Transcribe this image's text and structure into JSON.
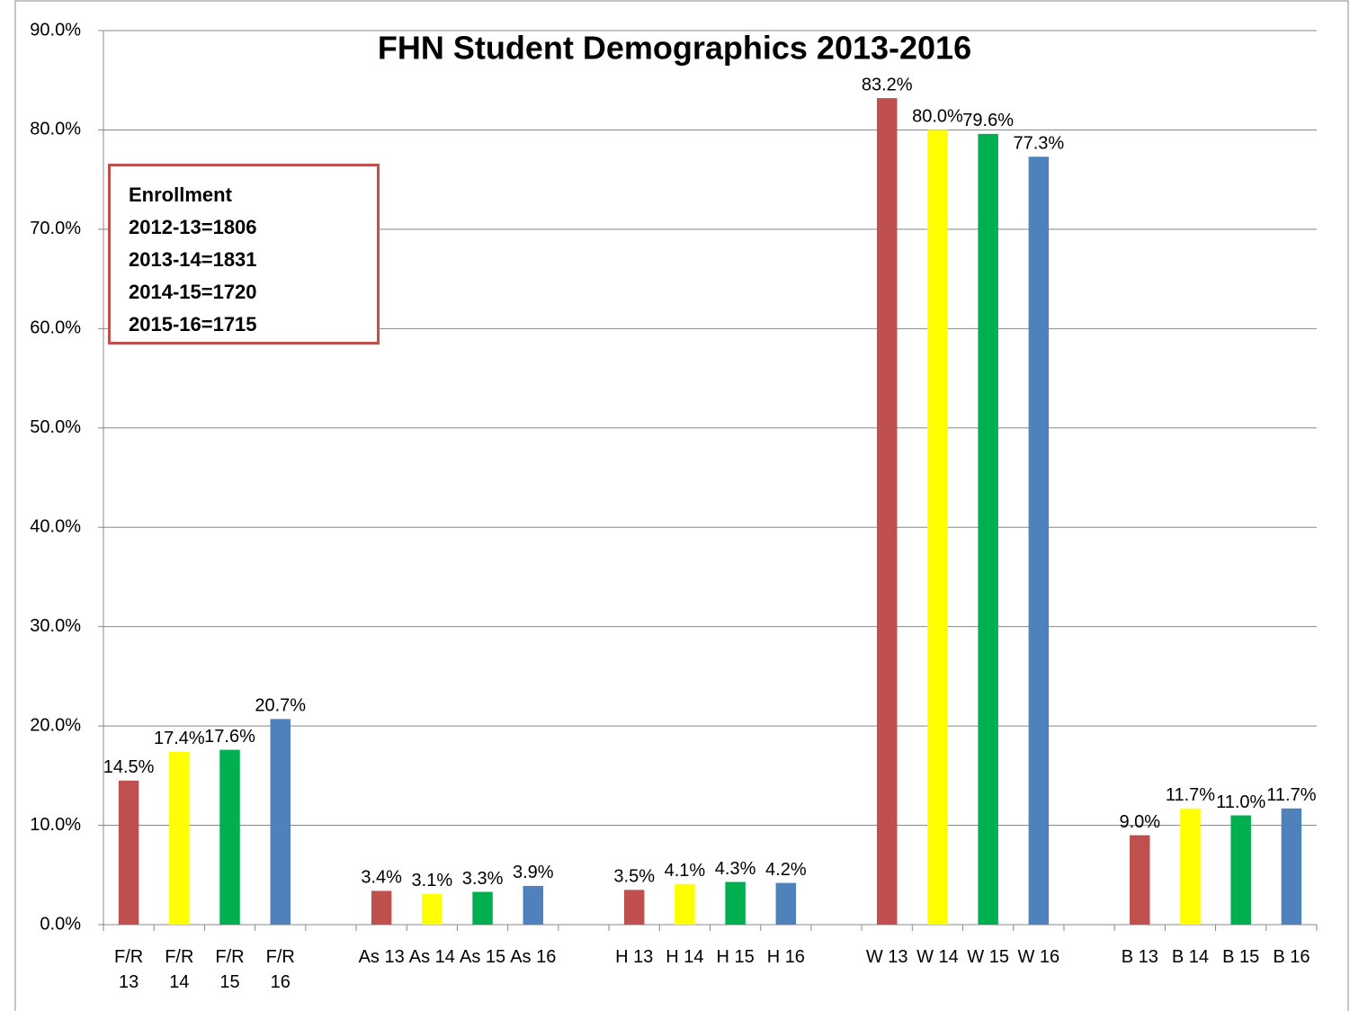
{
  "chart_data": {
    "type": "bar",
    "title": "FHN Student Demographics 2013-2016",
    "categories": [
      "F/R 13",
      "F/R 14",
      "F/R 15",
      "F/R 16",
      null,
      "As 13",
      "As 14",
      "As 15",
      "As 16",
      null,
      "H 13",
      "H 14",
      "H 15",
      "H 16",
      null,
      "W 13",
      "W 14",
      "W 15",
      "W 16",
      null,
      "B 13",
      "B 14",
      "B 15",
      "B 16"
    ],
    "values": [
      14.5,
      17.4,
      17.6,
      20.7,
      null,
      3.4,
      3.1,
      3.3,
      3.9,
      null,
      3.5,
      4.1,
      4.3,
      4.2,
      null,
      83.2,
      80.0,
      79.6,
      77.3,
      null,
      9.0,
      11.7,
      11.0,
      11.7
    ],
    "value_labels": [
      "14.5%",
      "17.4%",
      "17.6%",
      "20.7%",
      null,
      "3.4%",
      "3.1%",
      "3.3%",
      "3.9%",
      null,
      "3.5%",
      "4.1%",
      "4.3%",
      "4.2%",
      null,
      "83.2%",
      "80.0%",
      "79.6%",
      "77.3%",
      null,
      "9.0%",
      "11.7%",
      "11.0%",
      "11.7%"
    ],
    "colors": [
      "#c0504d",
      "#ffff00",
      "#00b050",
      "#4f81bd",
      null,
      "#c0504d",
      "#ffff00",
      "#00b050",
      "#4f81bd",
      null,
      "#c0504d",
      "#ffff00",
      "#00b050",
      "#4f81bd",
      null,
      "#c0504d",
      "#ffff00",
      "#00b050",
      "#4f81bd",
      null,
      "#c0504d",
      "#ffff00",
      "#00b050",
      "#4f81bd"
    ],
    "ylim": [
      0,
      90
    ],
    "yticks": [
      {
        "value": 0,
        "label": "0.0%"
      },
      {
        "value": 10,
        "label": "10.0%"
      },
      {
        "value": 20,
        "label": "20.0%"
      },
      {
        "value": 30,
        "label": "30.0%"
      },
      {
        "value": 40,
        "label": "40.0%"
      },
      {
        "value": 50,
        "label": "50.0%"
      },
      {
        "value": 60,
        "label": "60.0%"
      },
      {
        "value": 70,
        "label": "70.0%"
      },
      {
        "value": 80,
        "label": "80.0%"
      },
      {
        "value": 90,
        "label": "90.0%"
      }
    ],
    "grid": true,
    "annotations": [
      "Enrollment",
      "2012-13=1806",
      "2013-14=1831",
      "2014-15=1720",
      "2015-16=1715"
    ]
  }
}
